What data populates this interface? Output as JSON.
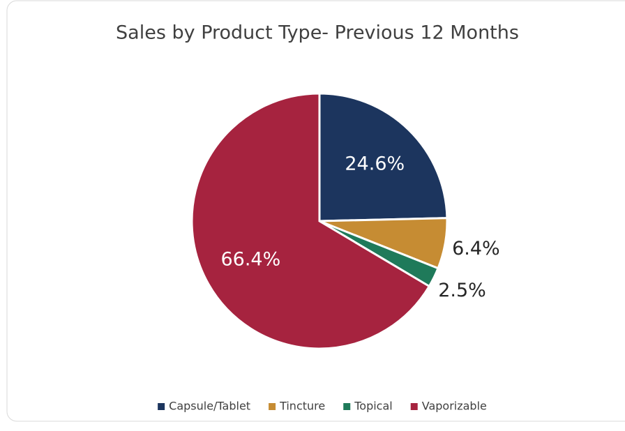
{
  "chart_data": {
    "type": "pie",
    "title": "Sales by Product Type- Previous 12 Months",
    "categories": [
      "Capsule/Tablet",
      "Tincture",
      "Topical",
      "Vaporizable"
    ],
    "values": [
      24.6,
      6.4,
      2.5,
      66.4
    ],
    "value_labels": [
      "24.6%",
      "6.4%",
      "2.5%",
      "66.4%"
    ],
    "colors": [
      "#1c355e",
      "#c68c33",
      "#1f7a5a",
      "#a6233f"
    ],
    "legend": "bottom"
  }
}
